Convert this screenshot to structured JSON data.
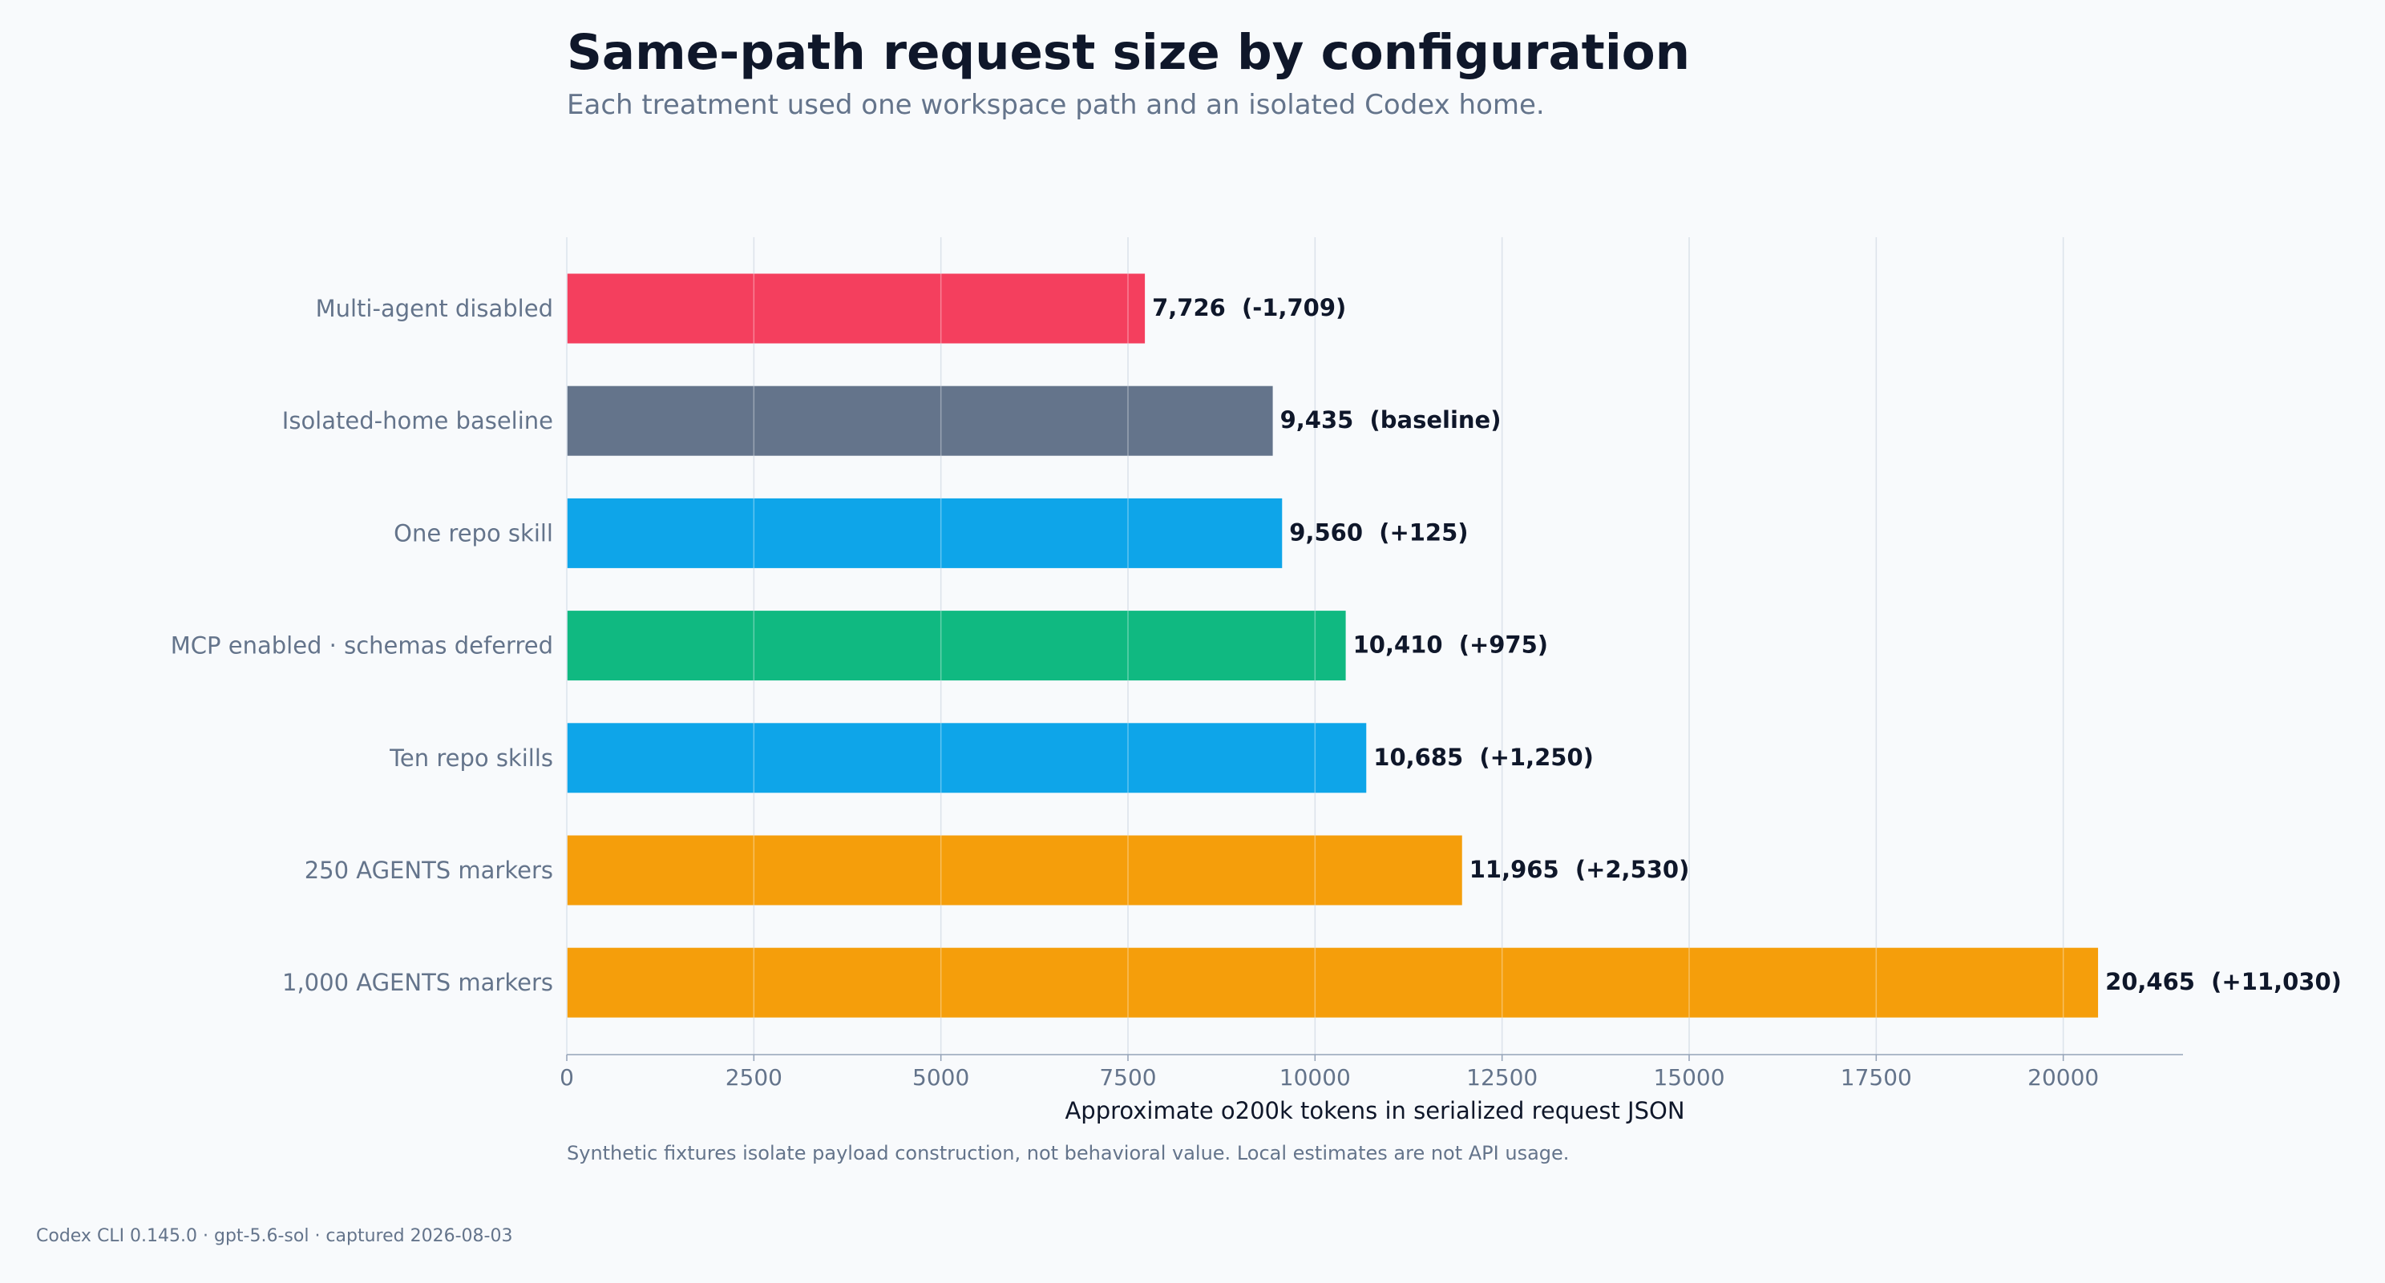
{
  "chart_data": {
    "type": "bar",
    "orientation": "horizontal",
    "title": "Same-path request size by configuration",
    "subtitle": "Each treatment used one workspace path and an isolated Codex home.",
    "xlabel": "Approximate o200k tokens in serialized request JSON",
    "ylabel": "",
    "xlim": [
      0,
      21600
    ],
    "xticks": [
      "0",
      "2500",
      "5000",
      "7500",
      "10000",
      "12500",
      "15000",
      "17500",
      "20000"
    ],
    "grid": true,
    "categories": [
      "Multi-agent disabled",
      "Isolated-home baseline",
      "One repo skill",
      "MCP enabled · schemas deferred",
      "Ten repo skills",
      "250 AGENTS markers",
      "1,000 AGENTS markers"
    ],
    "values": [
      7726,
      9435,
      9560,
      10410,
      10685,
      11965,
      20465
    ],
    "data_labels": [
      "7,726  (-1,709)",
      "9,435  (baseline)",
      "9,560  (+125)",
      "10,410  (+975)",
      "10,685  (+1,250)",
      "11,965  (+2,530)",
      "20,465  (+11,030)"
    ],
    "colors": [
      "#f43f5e",
      "#64748b",
      "#0ea5e9",
      "#10b981",
      "#0ea5e9",
      "#f59e0b",
      "#f59e0b"
    ],
    "note": "Synthetic fixtures isolate payload construction, not behavioral value. Local estimates are not API usage."
  },
  "footer": "Codex CLI 0.145.0 · gpt-5.6-sol · captured 2026-08-03",
  "colors": {
    "background": "#f8fafc",
    "title": "#0f172a",
    "muted": "#64748b",
    "grid": "#cbd5e1",
    "axis": "#94a3b8"
  }
}
